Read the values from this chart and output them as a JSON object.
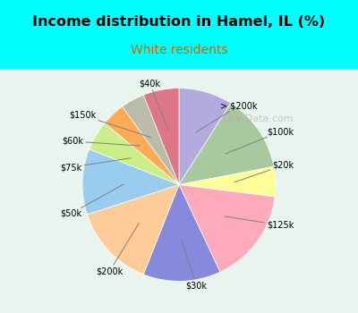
{
  "title": "Income distribution in Hamel, IL (%)",
  "subtitle": "White residents",
  "watermark": "City-Data.com",
  "labels": [
    "> $200k",
    "$100k",
    "$20k",
    "$125k",
    "$30k",
    "$200k",
    "$50k",
    "$75k",
    "$60k",
    "$150k",
    "$40k"
  ],
  "sizes": [
    9,
    13,
    5,
    16,
    13,
    14,
    11,
    5,
    4,
    4,
    6
  ],
  "colors": [
    "#b3aadd",
    "#a8c8a0",
    "#ffff99",
    "#ffaabb",
    "#8888dd",
    "#ffcc99",
    "#99ccee",
    "#ccee88",
    "#ffaa55",
    "#bbbbaa",
    "#dd7788"
  ],
  "bg_top": "#00ffff",
  "bg_chart": "#e8f5ee",
  "title_color": "#000000",
  "subtitle_color": "#cc6600",
  "startangle": 90
}
